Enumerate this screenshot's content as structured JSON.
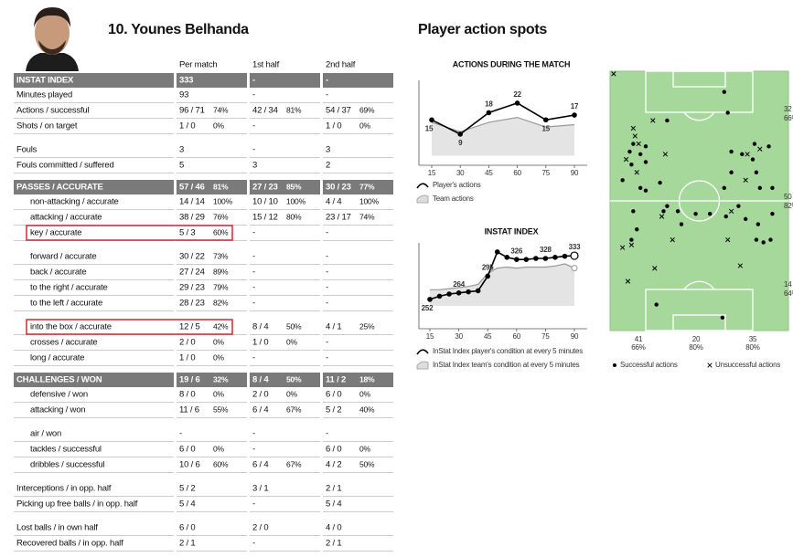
{
  "header": {
    "player": "10. Younes Belhanda",
    "section_title": "Player action spots"
  },
  "table": {
    "columns": [
      "Per match",
      "1st half",
      "2nd half"
    ],
    "sections": [
      {
        "header": {
          "label": "INSTAT INDEX",
          "cells": [
            [
              "333"
            ],
            [
              "-"
            ],
            [
              "-"
            ]
          ]
        },
        "groups": [
          [
            {
              "label": "Minutes played",
              "cells": [
                [
                  "93"
                ],
                [
                  "-"
                ],
                [
                  "-"
                ]
              ]
            },
            {
              "label": "Actions / successful",
              "cells": [
                [
                  "96 / 71",
                  "74%"
                ],
                [
                  "42 / 34",
                  "81%"
                ],
                [
                  "54 / 37",
                  "69%"
                ]
              ]
            },
            {
              "label": "Shots / on target",
              "cells": [
                [
                  "1 / 0",
                  "0%"
                ],
                [
                  "-"
                ],
                [
                  "1 / 0",
                  "0%"
                ]
              ]
            }
          ],
          [
            {
              "label": "Fouls",
              "cells": [
                [
                  "3"
                ],
                [
                  "-"
                ],
                [
                  "3"
                ]
              ]
            },
            {
              "label": "Fouls committed / suffered",
              "cells": [
                [
                  "5"
                ],
                [
                  "3"
                ],
                [
                  "2"
                ]
              ]
            }
          ]
        ]
      },
      {
        "header": {
          "label": "PASSES / ACCURATE",
          "cells": [
            [
              "57 / 46",
              "81%"
            ],
            [
              "27 / 23",
              "85%"
            ],
            [
              "30 / 23",
              "77%"
            ]
          ]
        },
        "groups": [
          [
            {
              "label": "non-attacking / accurate",
              "indent": true,
              "cells": [
                [
                  "14 / 14",
                  "100%"
                ],
                [
                  "10 / 10",
                  "100%"
                ],
                [
                  "4 / 4",
                  "100%"
                ]
              ]
            },
            {
              "label": "attacking / accurate",
              "indent": true,
              "cells": [
                [
                  "38 / 29",
                  "76%"
                ],
                [
                  "15 / 12",
                  "80%"
                ],
                [
                  "23 / 17",
                  "74%"
                ]
              ]
            },
            {
              "label": "key / accurate",
              "indent": true,
              "highlight": true,
              "cells": [
                [
                  "5 / 3",
                  "60%"
                ],
                [
                  "-"
                ],
                [
                  "-"
                ]
              ]
            }
          ],
          [
            {
              "label": "forward / accurate",
              "indent": true,
              "cells": [
                [
                  "30 / 22",
                  "73%"
                ],
                [
                  "-"
                ],
                [
                  "-"
                ]
              ]
            },
            {
              "label": "back / accurate",
              "indent": true,
              "cells": [
                [
                  "27 / 24",
                  "89%"
                ],
                [
                  "-"
                ],
                [
                  "-"
                ]
              ]
            },
            {
              "label": "to the right / accurate",
              "indent": true,
              "cells": [
                [
                  "29 / 23",
                  "79%"
                ],
                [
                  "-"
                ],
                [
                  "-"
                ]
              ]
            },
            {
              "label": "to the left / accurate",
              "indent": true,
              "cells": [
                [
                  "28 / 23",
                  "82%"
                ],
                [
                  "-"
                ],
                [
                  "-"
                ]
              ]
            }
          ],
          [
            {
              "label": "into the box / accurate",
              "indent": true,
              "highlight": true,
              "cells": [
                [
                  "12 / 5",
                  "42%"
                ],
                [
                  "8 / 4",
                  "50%"
                ],
                [
                  "4 / 1",
                  "25%"
                ]
              ]
            },
            {
              "label": "crosses / accurate",
              "indent": true,
              "cells": [
                [
                  "2 / 0",
                  "0%"
                ],
                [
                  "1 / 0",
                  "0%"
                ],
                [
                  "-"
                ]
              ]
            },
            {
              "label": "long / accurate",
              "indent": true,
              "cells": [
                [
                  "1 / 0",
                  "0%"
                ],
                [
                  "-"
                ],
                [
                  "-"
                ]
              ]
            }
          ]
        ]
      },
      {
        "header": {
          "label": "CHALLENGES / WON",
          "cells": [
            [
              "19 / 6",
              "32%"
            ],
            [
              "8 / 4",
              "50%"
            ],
            [
              "11 / 2",
              "18%"
            ]
          ]
        },
        "groups": [
          [
            {
              "label": "defensive / won",
              "indent": true,
              "cells": [
                [
                  "8 / 0",
                  "0%"
                ],
                [
                  "2 / 0",
                  "0%"
                ],
                [
                  "6 / 0",
                  "0%"
                ]
              ]
            },
            {
              "label": "attacking / won",
              "indent": true,
              "cells": [
                [
                  "11 / 6",
                  "55%"
                ],
                [
                  "6 / 4",
                  "67%"
                ],
                [
                  "5 / 2",
                  "40%"
                ]
              ]
            }
          ],
          [
            {
              "label": "air / won",
              "indent": true,
              "cells": [
                [
                  "-"
                ],
                [
                  "-"
                ],
                [
                  "-"
                ]
              ]
            },
            {
              "label": "tackles / successful",
              "indent": true,
              "cells": [
                [
                  "6 / 0",
                  "0%"
                ],
                [
                  "-"
                ],
                [
                  "6 / 0",
                  "0%"
                ]
              ]
            },
            {
              "label": "dribbles / successful",
              "indent": true,
              "cells": [
                [
                  "10 / 6",
                  "60%"
                ],
                [
                  "6 / 4",
                  "67%"
                ],
                [
                  "4 / 2",
                  "50%"
                ]
              ]
            }
          ],
          [
            {
              "label": "Interceptions / in opp. half",
              "cells": [
                [
                  "5 / 2"
                ],
                [
                  "3 / 1"
                ],
                [
                  "2 / 1"
                ]
              ]
            },
            {
              "label": "Picking up free balls / in opp. half",
              "cells": [
                [
                  "5 / 4"
                ],
                [
                  "-"
                ],
                [
                  "5 / 4"
                ]
              ]
            }
          ],
          [
            {
              "label": "Lost balls / in own half",
              "cells": [
                [
                  "6 / 0"
                ],
                [
                  "2 / 0"
                ],
                [
                  "4 / 0"
                ]
              ]
            },
            {
              "label": "Recovered balls / in opp. half",
              "cells": [
                [
                  "2 / 1"
                ],
                [
                  "-"
                ],
                [
                  "2 / 1"
                ]
              ]
            }
          ]
        ]
      }
    ]
  },
  "actions_chart": {
    "type": "line",
    "title": "ACTIONS DURING THE MATCH",
    "x": [
      15,
      30,
      45,
      60,
      75,
      90
    ],
    "xlim": [
      15,
      90
    ],
    "xticks": [
      15,
      30,
      45,
      60,
      75,
      90
    ],
    "ylim": [
      0,
      30
    ],
    "series": [
      {
        "name": "Player's actions",
        "color": "#000000",
        "values": [
          15,
          9,
          18,
          22,
          15,
          17
        ]
      },
      {
        "name": "Team actions",
        "color": "#999999",
        "area": true,
        "values": [
          14,
          10,
          14,
          16,
          12,
          13
        ]
      }
    ]
  },
  "index_chart": {
    "type": "line",
    "title": "INSTAT INDEX",
    "x": [
      15,
      20,
      25,
      30,
      35,
      40,
      45,
      50,
      55,
      60,
      65,
      70,
      75,
      80,
      85,
      90
    ],
    "xlim": [
      15,
      90
    ],
    "xticks": [
      15,
      30,
      45,
      60,
      75,
      90
    ],
    "ylim": [
      240,
      350
    ],
    "highlight_color": "#e02020",
    "series": [
      {
        "name": "InStat Index player's condition at every 5 minutes",
        "color": "#000000",
        "values": [
          252,
          258,
          262,
          264,
          266,
          268,
          295,
          340,
          330,
          326,
          326,
          328,
          328,
          330,
          332,
          333
        ],
        "value_labels": [
          "252",
          null,
          null,
          "264",
          null,
          null,
          "295",
          null,
          null,
          "326",
          null,
          null,
          "328",
          null,
          null,
          "333"
        ]
      },
      {
        "name": "InStat Index team's condition at every 5 minutes",
        "color": "#999999",
        "area": true,
        "values": [
          270,
          270,
          272,
          274,
          276,
          280,
          300,
          310,
          312,
          310,
          312,
          312,
          312,
          314,
          318,
          310
        ]
      }
    ]
  },
  "pitch": {
    "type": "scatter",
    "xlim": [
      0,
      100
    ],
    "ylim": [
      0,
      100
    ],
    "series": [
      {
        "name": "Successful actions",
        "marker": "dot",
        "color": "#000000",
        "x": [
          64,
          66,
          32,
          13,
          20,
          11,
          17,
          20,
          12,
          7,
          17,
          20,
          28,
          68,
          74,
          81,
          80,
          89,
          82,
          84,
          91,
          64,
          68,
          32,
          38,
          48,
          56,
          65,
          72,
          76,
          83,
          91,
          13,
          15,
          12,
          30,
          40,
          82,
          86,
          90,
          26,
          63
        ],
        "y": [
          8,
          16,
          19,
          28,
          29,
          31,
          32,
          35,
          36,
          42,
          45,
          46,
          43,
          31,
          32,
          28,
          34,
          29,
          39,
          45,
          45,
          45,
          39,
          52,
          54,
          55,
          55,
          56,
          52,
          57,
          59,
          55,
          54,
          61,
          65,
          54,
          59,
          65,
          66,
          65,
          90,
          95
        ]
      },
      {
        "name": "Unsuccessful actions",
        "marker": "cross",
        "color": "#000000",
        "x": [
          2,
          24,
          13,
          14,
          16,
          31,
          9,
          15,
          77,
          84,
          76,
          29,
          68,
          7,
          12,
          35,
          25,
          73,
          10,
          66
        ],
        "y": [
          1,
          19,
          22,
          25,
          28,
          32,
          34,
          39,
          32,
          30,
          42,
          56,
          54,
          68,
          67,
          65,
          76,
          75,
          81,
          65
        ]
      }
    ],
    "side_labels": [
      [
        "32",
        "66%"
      ],
      [
        "50",
        "82%"
      ],
      [
        "14",
        "64%"
      ]
    ],
    "bottom_labels": [
      [
        "41",
        "66%"
      ],
      [
        "20",
        "80%"
      ],
      [
        "35",
        "80%"
      ]
    ]
  }
}
